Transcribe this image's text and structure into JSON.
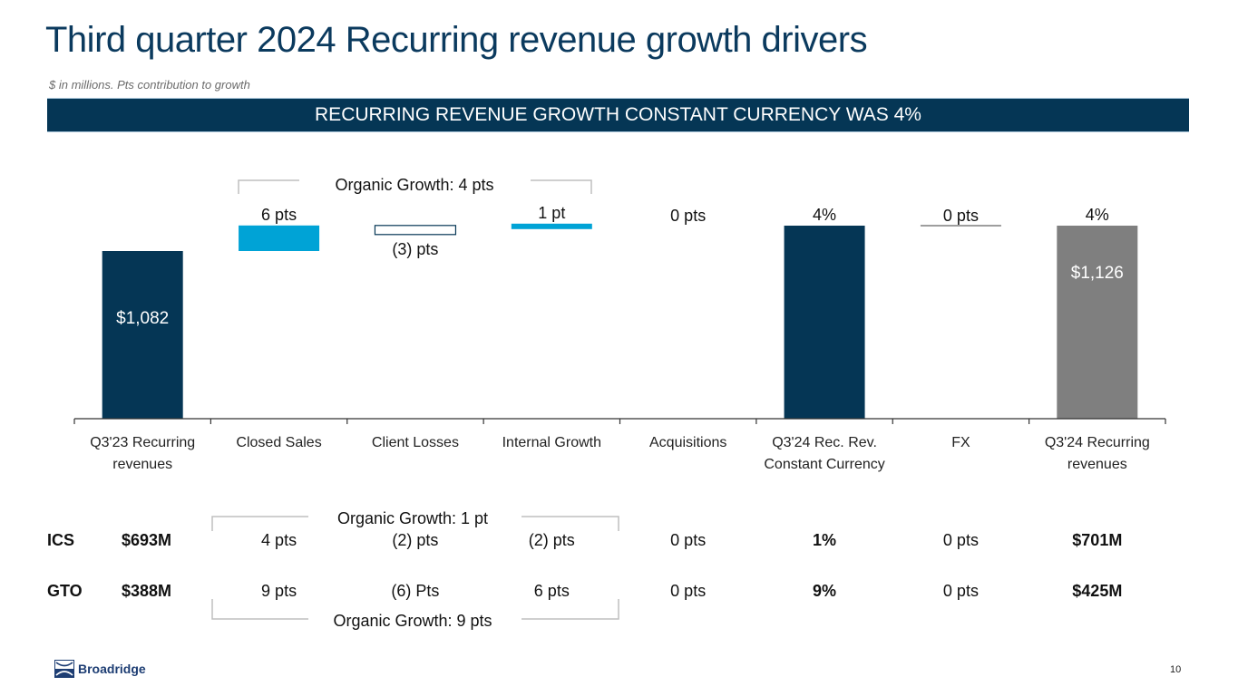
{
  "slide": {
    "title": "Third quarter 2024 Recurring revenue growth drivers",
    "subtitle": "$ in millions. Pts contribution to growth",
    "banner": "RECURRING REVENUE GROWTH CONSTANT CURRENCY WAS 4%",
    "logo_text": "Broadridge",
    "logo_mark": "®",
    "page_number": "10"
  },
  "colors": {
    "navy": "#053655",
    "cyan": "#00a3d6",
    "grey": "#7f7f7f",
    "bracket": "#bfbfbf"
  },
  "chart_data": {
    "type": "bar",
    "subtype": "waterfall",
    "title": "Third quarter 2024 Recurring revenue growth drivers",
    "xlabel": "",
    "ylabel": "",
    "grid": false,
    "categories": [
      "Q3'23 Recurring revenues",
      "Closed Sales",
      "Client Losses",
      "Internal Growth",
      "Acquisitions",
      "Q3'24 Rec. Rev. Constant Currency",
      "FX",
      "Q3'24 Recurring revenues"
    ],
    "category_lines": [
      [
        "Q3'23 Recurring",
        "revenues"
      ],
      [
        "Closed Sales"
      ],
      [
        "Client Losses"
      ],
      [
        "Internal Growth"
      ],
      [
        "Acquisitions"
      ],
      [
        "Q3'24 Rec. Rev.",
        "Constant Currency"
      ],
      [
        "FX"
      ],
      [
        "Q3'24 Recurring",
        "revenues"
      ]
    ],
    "values_pts": [
      null,
      6,
      -3,
      1,
      0,
      4,
      0,
      4
    ],
    "values_usd_millions": [
      1082,
      null,
      null,
      null,
      null,
      null,
      null,
      1126
    ],
    "bar_labels": [
      "$1,082",
      "6 pts",
      "(3) pts",
      "1 pt",
      "0 pts",
      "4%",
      "0 pts",
      "4%"
    ],
    "inner_labels": [
      "$1,082",
      "",
      "",
      "",
      "",
      "",
      "",
      "$1,126"
    ],
    "bar_kinds": [
      "total",
      "increase",
      "decrease",
      "increase",
      "zero",
      "total",
      "zero",
      "total"
    ],
    "annotation": "Organic Growth: 4 pts"
  },
  "segments": {
    "rows": [
      {
        "name": "ICS",
        "base": "$693M",
        "values": [
          "4 pts",
          "(2) pts",
          "(2) pts",
          "0 pts",
          "1%",
          "0 pts",
          "$701M"
        ]
      },
      {
        "name": "GTO",
        "base": "$388M",
        "values": [
          "9 pts",
          "(6) Pts",
          "6 pts",
          "0 pts",
          "9%",
          "0 pts",
          "$425M"
        ]
      }
    ],
    "ics_organic": "Organic Growth: 1 pt",
    "gto_organic": "Organic Growth: 9 pts"
  }
}
